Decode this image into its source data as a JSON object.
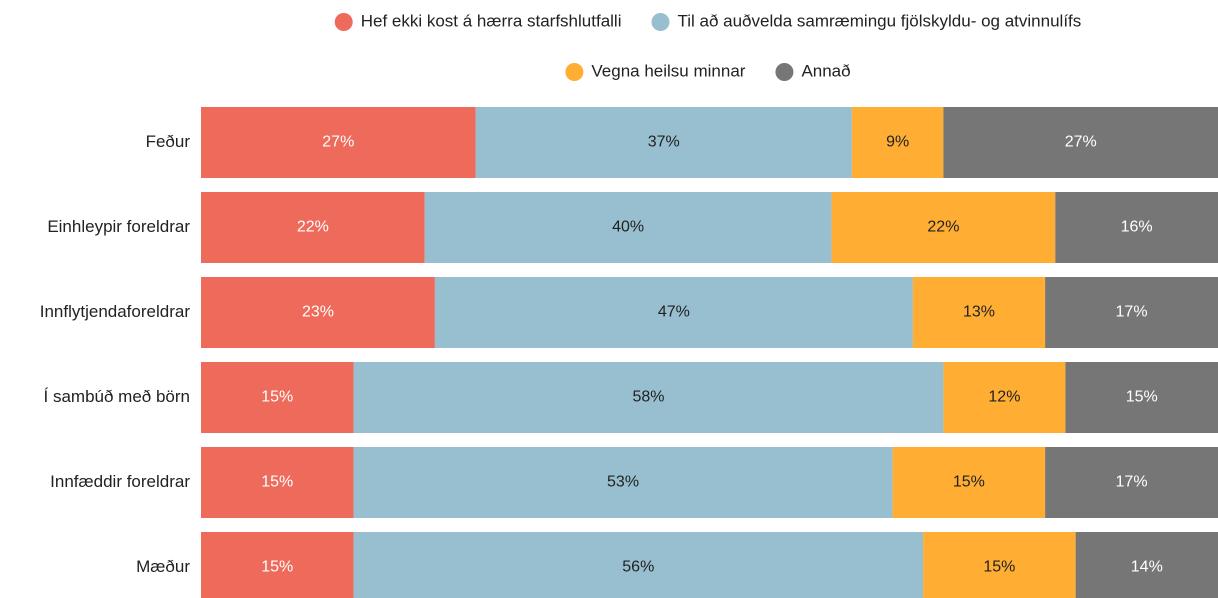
{
  "chart_data": {
    "type": "stacked-bar-horizontal",
    "categories": [
      "Feður",
      "Einhleypir foreldrar",
      "Innflytjendaforeldrar",
      "Í sambúð með börn",
      "Innfæddir foreldrar",
      "Mæður"
    ],
    "xlim": [
      0,
      100
    ],
    "series": [
      {
        "name": "Hef ekki kost á hærra starfshlutfalli",
        "color": "#ee6a5a",
        "label_color": "#ffffff",
        "values": [
          27,
          22,
          23,
          15,
          15,
          15
        ],
        "value_labels": [
          "27%",
          "22%",
          "23%",
          "15%",
          "15%",
          "15%"
        ]
      },
      {
        "name": "Til að auðvelda samræmingu fjölskyldu- og atvinnulífs",
        "color": "#98bfcf",
        "label_color": "#222222",
        "values": [
          37,
          40,
          47,
          58,
          53,
          56
        ],
        "value_labels": [
          "37%",
          "40%",
          "47%",
          "58%",
          "53%",
          "56%"
        ]
      },
      {
        "name": "Vegna heilsu minnar",
        "color": "#ffad33",
        "label_color": "#222222",
        "values": [
          9,
          22,
          13,
          12,
          15,
          15
        ],
        "value_labels": [
          "9%",
          "22%",
          "13%",
          "12%",
          "15%",
          "15%"
        ]
      },
      {
        "name": "Annað",
        "color": "#767676",
        "label_color": "#ffffff",
        "values": [
          27,
          16,
          17,
          15,
          17,
          14
        ],
        "value_labels": [
          "27%",
          "16%",
          "17%",
          "15%",
          "17%",
          "14%"
        ]
      }
    ]
  }
}
